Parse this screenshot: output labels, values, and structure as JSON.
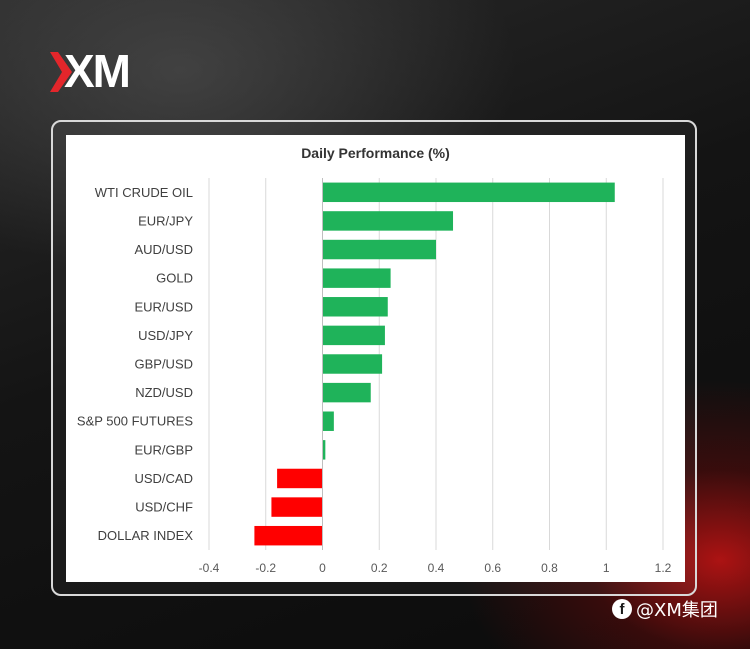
{
  "brand": {
    "logo_text": "XM",
    "accent": "#e3262b"
  },
  "watermark": {
    "icon": "facebook-icon",
    "text": "@XM集团"
  },
  "chart_data": {
    "type": "bar",
    "orientation": "horizontal",
    "title": "Daily Performance (%)",
    "categories": [
      "WTI CRUDE OIL",
      "EUR/JPY",
      "AUD/USD",
      "GOLD",
      "EUR/USD",
      "USD/JPY",
      "GBP/USD",
      "NZD/USD",
      "S&P 500 FUTURES",
      "EUR/GBP",
      "USD/CAD",
      "USD/CHF",
      "DOLLAR INDEX"
    ],
    "values": [
      1.03,
      0.46,
      0.4,
      0.24,
      0.23,
      0.22,
      0.21,
      0.17,
      0.04,
      0.01,
      -0.16,
      -0.18,
      -0.24
    ],
    "xlim": [
      -0.4,
      1.2
    ],
    "ticks": [
      "-0.4",
      "-0.2",
      "0",
      "0.2",
      "0.4",
      "0.6",
      "0.8",
      "1",
      "1.2"
    ],
    "grid": true,
    "colors": {
      "positive": "#1fb35a",
      "negative": "#ff0000",
      "grid": "#d9d9d9",
      "axis": "#bfbfbf"
    }
  }
}
